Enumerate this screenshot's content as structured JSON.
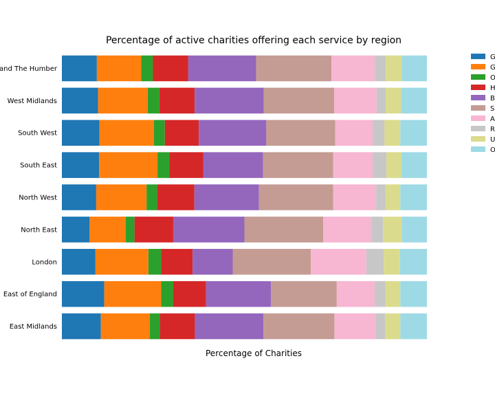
{
  "chart_data": {
    "type": "bar",
    "orientation": "horizontal",
    "stacked": true,
    "normalized_to_100": true,
    "title": "Percentage of active charities offering each service by region",
    "xlabel": "Percentage of Charities",
    "ylabel": "",
    "xlim": [
      0,
      100
    ],
    "grid": false,
    "legend_position": "right, outside plot",
    "categories": [
      "East Midlands",
      "East of England",
      "London",
      "North East",
      "North West",
      "South East",
      "South West",
      "West Midlands",
      "Yorkshire and The Humber"
    ],
    "series": [
      {
        "name": "G",
        "color": "#1f77b4",
        "values": [
          10.7,
          11.6,
          9.2,
          7.6,
          9.4,
          10.2,
          10.3,
          9.9,
          9.6
        ]
      },
      {
        "name": "G",
        "color": "#ff7f0e",
        "values": [
          13.4,
          15.6,
          14.5,
          9.9,
          13.8,
          16.0,
          14.9,
          13.6,
          12.2
        ]
      },
      {
        "name": "O",
        "color": "#2ca02c",
        "values": [
          2.8,
          3.3,
          3.5,
          2.4,
          2.9,
          3.2,
          3.0,
          3.2,
          3.2
        ]
      },
      {
        "name": "H",
        "color": "#d62728",
        "values": [
          9.6,
          9.0,
          8.6,
          10.6,
          10.2,
          9.3,
          9.3,
          9.7,
          9.7
        ]
      },
      {
        "name": "B",
        "color": "#9467bd",
        "values": [
          18.8,
          17.8,
          11.0,
          19.5,
          17.7,
          16.4,
          18.5,
          18.9,
          18.6
        ]
      },
      {
        "name": "S",
        "color": "#c49c94",
        "values": [
          19.5,
          18.0,
          21.4,
          21.6,
          20.3,
          19.2,
          18.9,
          19.3,
          20.7
        ]
      },
      {
        "name": "A",
        "color": "#f7b6d2",
        "values": [
          11.2,
          10.4,
          15.2,
          13.1,
          11.8,
          10.9,
          10.3,
          11.6,
          11.9
        ]
      },
      {
        "name": "R",
        "color": "#c7c7c7",
        "values": [
          2.7,
          2.9,
          4.8,
          3.3,
          2.5,
          3.7,
          3.2,
          2.5,
          3.0
        ]
      },
      {
        "name": "U",
        "color": "#dbdb8d",
        "values": [
          4.2,
          4.1,
          4.4,
          5.1,
          4.1,
          4.1,
          4.3,
          4.2,
          4.4
        ]
      },
      {
        "name": "O",
        "color": "#9edae5",
        "values": [
          7.3,
          7.3,
          7.4,
          6.9,
          7.3,
          7.0,
          7.3,
          7.1,
          6.9
        ]
      }
    ]
  }
}
